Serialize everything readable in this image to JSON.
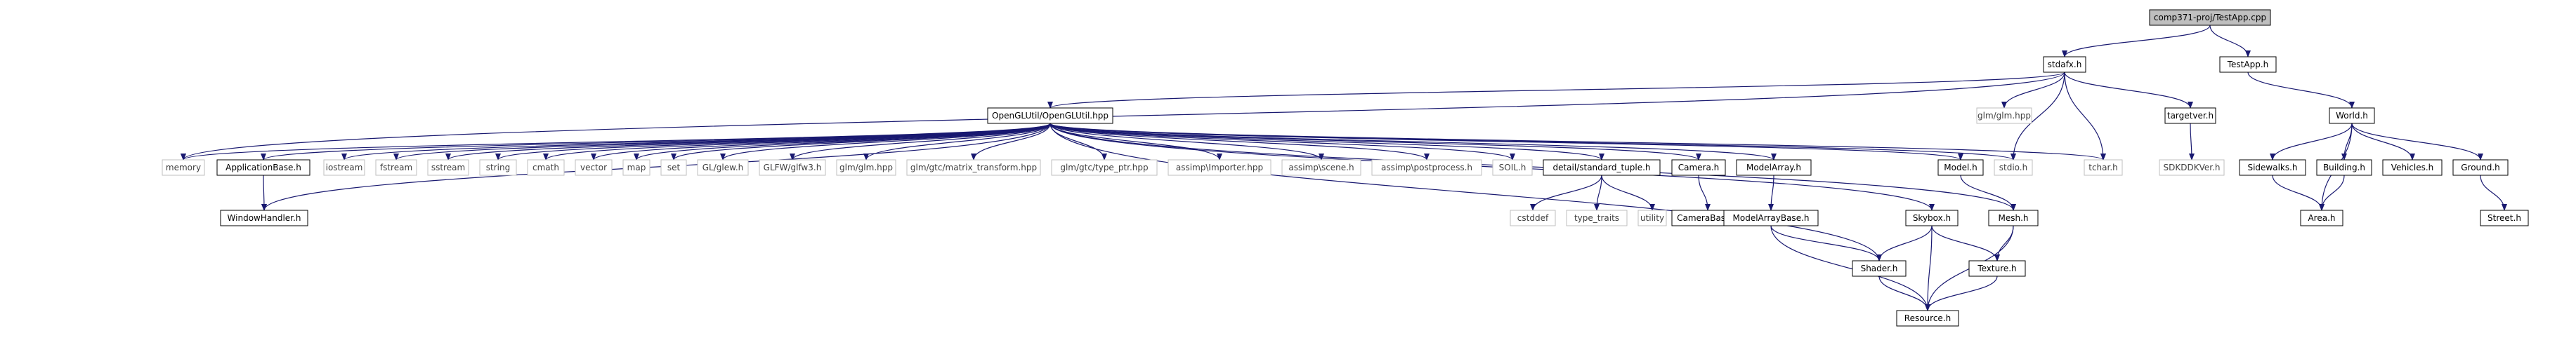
{
  "colors": {
    "edge": "#191970",
    "node_border": "#000000",
    "node_fill": "#ffffff",
    "node_text": "#000000",
    "root_fill": "#bfbfbf",
    "external_border": "#bfbfbf",
    "external_text": "#404040"
  },
  "nodes": [
    {
      "id": "root",
      "label": "comp371-proj/TestApp.cpp",
      "kind": "root"
    },
    {
      "id": "stdafx",
      "label": "stdafx.h",
      "kind": "local"
    },
    {
      "id": "testapp",
      "label": "TestApp.h",
      "kind": "local"
    },
    {
      "id": "openglutil",
      "label": "OpenGLUtil/OpenGLUtil.hpp",
      "kind": "local"
    },
    {
      "id": "glmglm_std",
      "label": "glm/glm.hpp",
      "kind": "external"
    },
    {
      "id": "targetver",
      "label": "targetver.h",
      "kind": "local"
    },
    {
      "id": "world",
      "label": "World.h",
      "kind": "local"
    },
    {
      "id": "memory",
      "label": "memory",
      "kind": "external"
    },
    {
      "id": "appbase",
      "label": "ApplicationBase.h",
      "kind": "local"
    },
    {
      "id": "iostream",
      "label": "iostream",
      "kind": "external"
    },
    {
      "id": "fstream",
      "label": "fstream",
      "kind": "external"
    },
    {
      "id": "sstream",
      "label": "sstream",
      "kind": "external"
    },
    {
      "id": "string",
      "label": "string",
      "kind": "external"
    },
    {
      "id": "cmath",
      "label": "cmath",
      "kind": "external"
    },
    {
      "id": "vector",
      "label": "vector",
      "kind": "external"
    },
    {
      "id": "map",
      "label": "map",
      "kind": "external"
    },
    {
      "id": "set",
      "label": "set",
      "kind": "external"
    },
    {
      "id": "glew",
      "label": "GL/glew.h",
      "kind": "external"
    },
    {
      "id": "glfw",
      "label": "GLFW/glfw3.h",
      "kind": "external"
    },
    {
      "id": "glmhpp",
      "label": "glm/glm.hpp",
      "kind": "external"
    },
    {
      "id": "glmmat",
      "label": "glm/gtc/matrix_transform.hpp",
      "kind": "external"
    },
    {
      "id": "glmtype",
      "label": "glm/gtc/type_ptr.hpp",
      "kind": "external"
    },
    {
      "id": "assimp_imp",
      "label": "assimp\\Importer.hpp",
      "kind": "external"
    },
    {
      "id": "assimp_scene",
      "label": "assimp\\scene.h",
      "kind": "external"
    },
    {
      "id": "assimp_post",
      "label": "assimp\\postprocess.h",
      "kind": "external"
    },
    {
      "id": "soil",
      "label": "SOIL.h",
      "kind": "external"
    },
    {
      "id": "stdtuple",
      "label": "detail/standard_tuple.h",
      "kind": "local"
    },
    {
      "id": "camera",
      "label": "Camera.h",
      "kind": "local"
    },
    {
      "id": "modelarray",
      "label": "ModelArray.h",
      "kind": "local"
    },
    {
      "id": "model",
      "label": "Model.h",
      "kind": "local"
    },
    {
      "id": "stdioh",
      "label": "stdio.h",
      "kind": "external"
    },
    {
      "id": "tcharh",
      "label": "tchar.h",
      "kind": "external"
    },
    {
      "id": "sdkddk",
      "label": "SDKDDKVer.h",
      "kind": "external"
    },
    {
      "id": "windowhandler",
      "label": "WindowHandler.h",
      "kind": "local"
    },
    {
      "id": "cstddef",
      "label": "cstddef",
      "kind": "external"
    },
    {
      "id": "typetraits",
      "label": "type_traits",
      "kind": "external"
    },
    {
      "id": "utility",
      "label": "utility",
      "kind": "external"
    },
    {
      "id": "camerabase",
      "label": "CameraBase.h",
      "kind": "local"
    },
    {
      "id": "modelarraybase",
      "label": "ModelArrayBase.h",
      "kind": "local"
    },
    {
      "id": "skybox",
      "label": "Skybox.h",
      "kind": "local"
    },
    {
      "id": "mesh",
      "label": "Mesh.h",
      "kind": "local"
    },
    {
      "id": "shader",
      "label": "Shader.h",
      "kind": "local"
    },
    {
      "id": "texture",
      "label": "Texture.h",
      "kind": "local"
    },
    {
      "id": "resource",
      "label": "Resource.h",
      "kind": "local"
    },
    {
      "id": "sidewalks",
      "label": "Sidewalks.h",
      "kind": "local"
    },
    {
      "id": "building",
      "label": "Building.h",
      "kind": "local"
    },
    {
      "id": "vehicles",
      "label": "Vehicles.h",
      "kind": "local"
    },
    {
      "id": "ground",
      "label": "Ground.h",
      "kind": "local"
    },
    {
      "id": "area",
      "label": "Area.h",
      "kind": "local"
    },
    {
      "id": "street",
      "label": "Street.h",
      "kind": "local"
    }
  ],
  "edges": [
    [
      "root",
      "stdafx"
    ],
    [
      "root",
      "testapp"
    ],
    [
      "stdafx",
      "openglutil"
    ],
    [
      "stdafx",
      "glmglm_std"
    ],
    [
      "stdafx",
      "targetver"
    ],
    [
      "stdafx",
      "stdioh"
    ],
    [
      "stdafx",
      "tcharh"
    ],
    [
      "stdafx",
      "memory"
    ],
    [
      "targetver",
      "sdkddk"
    ],
    [
      "testapp",
      "world"
    ],
    [
      "openglutil",
      "memory"
    ],
    [
      "openglutil",
      "appbase"
    ],
    [
      "openglutil",
      "windowhandler"
    ],
    [
      "openglutil",
      "iostream"
    ],
    [
      "openglutil",
      "fstream"
    ],
    [
      "openglutil",
      "sstream"
    ],
    [
      "openglutil",
      "string"
    ],
    [
      "openglutil",
      "cmath"
    ],
    [
      "openglutil",
      "vector"
    ],
    [
      "openglutil",
      "map"
    ],
    [
      "openglutil",
      "set"
    ],
    [
      "openglutil",
      "glew"
    ],
    [
      "openglutil",
      "glfw"
    ],
    [
      "openglutil",
      "glmhpp"
    ],
    [
      "openglutil",
      "glmmat"
    ],
    [
      "openglutil",
      "glmtype"
    ],
    [
      "openglutil",
      "assimp_imp"
    ],
    [
      "openglutil",
      "assimp_scene"
    ],
    [
      "openglutil",
      "assimp_post"
    ],
    [
      "openglutil",
      "soil"
    ],
    [
      "openglutil",
      "stdtuple"
    ],
    [
      "openglutil",
      "camera"
    ],
    [
      "openglutil",
      "modelarray"
    ],
    [
      "openglutil",
      "model"
    ],
    [
      "openglutil",
      "skybox"
    ],
    [
      "openglutil",
      "shader"
    ],
    [
      "openglutil",
      "mesh"
    ],
    [
      "openglutil",
      "stdioh"
    ],
    [
      "openglutil",
      "tcharh"
    ],
    [
      "appbase",
      "windowhandler"
    ],
    [
      "stdtuple",
      "cstddef"
    ],
    [
      "stdtuple",
      "typetraits"
    ],
    [
      "stdtuple",
      "utility"
    ],
    [
      "camera",
      "camerabase"
    ],
    [
      "modelarray",
      "modelarraybase"
    ],
    [
      "modelarraybase",
      "shader"
    ],
    [
      "modelarraybase",
      "resource"
    ],
    [
      "model",
      "mesh"
    ],
    [
      "skybox",
      "shader"
    ],
    [
      "skybox",
      "texture"
    ],
    [
      "skybox",
      "resource"
    ],
    [
      "mesh",
      "texture"
    ],
    [
      "mesh",
      "resource"
    ],
    [
      "texture",
      "resource"
    ],
    [
      "shader",
      "resource"
    ],
    [
      "world",
      "sidewalks"
    ],
    [
      "world",
      "building"
    ],
    [
      "world",
      "vehicles"
    ],
    [
      "world",
      "ground"
    ],
    [
      "world",
      "area"
    ],
    [
      "sidewalks",
      "area"
    ],
    [
      "building",
      "area"
    ],
    [
      "ground",
      "street"
    ]
  ]
}
